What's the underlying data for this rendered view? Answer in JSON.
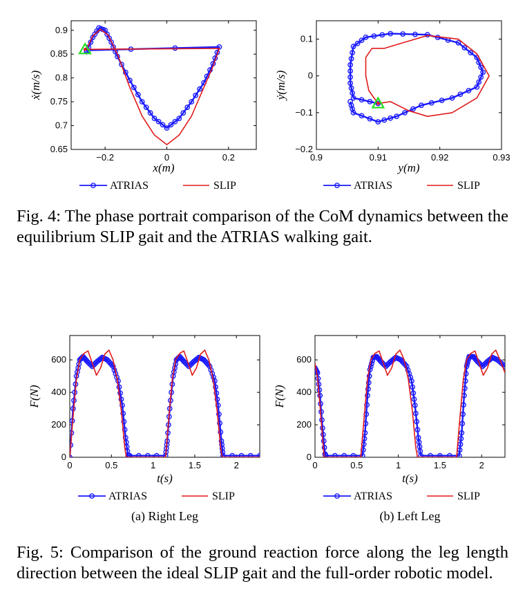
{
  "colors": {
    "atrias": "#1a1aff",
    "slip": "#e11a1a",
    "marker": "#22dd22"
  },
  "captions": {
    "fig4": "Fig. 4: The phase portrait comparison of the CoM dynamics between the equilibrium SLIP gait and the ATRIAS walking gait.",
    "fig5": "Fig. 5: Comparison of the ground reaction force along the leg length direction between the ideal SLIP gait and the full-order robotic model."
  },
  "chart_data": [
    {
      "id": "x-phase",
      "type": "line",
      "xlabel": "x(m)",
      "ylabel": "ẋ(m/s)",
      "xlim": [
        -0.31,
        0.29
      ],
      "ylim": [
        0.65,
        0.92
      ],
      "xticks": [
        -0.2,
        0,
        0.2
      ],
      "yticks": [
        0.65,
        0.7,
        0.75,
        0.8,
        0.85,
        0.9
      ],
      "xtick_labels": [
        "−0.2",
        "0",
        "0.2"
      ],
      "ytick_labels": [
        "0.65",
        "0.7",
        "0.75",
        "0.8",
        "0.85",
        "0.9"
      ],
      "legend": [
        "ATRIAS",
        "SLIP"
      ],
      "legend_position": "bottom",
      "series": [
        {
          "name": "ATRIAS",
          "marker": "circle",
          "points": [
            [
              -0.26,
              0.855
            ],
            [
              -0.24,
              0.885
            ],
            [
              -0.22,
              0.905
            ],
            [
              -0.2,
              0.9
            ],
            [
              -0.18,
              0.875
            ],
            [
              -0.16,
              0.845
            ],
            [
              -0.12,
              0.795
            ],
            [
              -0.08,
              0.75
            ],
            [
              -0.04,
              0.715
            ],
            [
              0,
              0.695
            ],
            [
              0.04,
              0.715
            ],
            [
              0.08,
              0.75
            ],
            [
              0.12,
              0.79
            ],
            [
              0.15,
              0.83
            ],
            [
              0.17,
              0.865
            ],
            [
              -0.26,
              0.858
            ]
          ]
        },
        {
          "name": "SLIP",
          "points": [
            [
              -0.26,
              0.86
            ],
            [
              -0.24,
              0.888
            ],
            [
              -0.215,
              0.902
            ],
            [
              -0.19,
              0.89
            ],
            [
              -0.16,
              0.85
            ],
            [
              -0.12,
              0.78
            ],
            [
              -0.08,
              0.72
            ],
            [
              -0.04,
              0.68
            ],
            [
              0,
              0.66
            ],
            [
              0.04,
              0.68
            ],
            [
              0.08,
              0.72
            ],
            [
              0.12,
              0.78
            ],
            [
              0.15,
              0.825
            ],
            [
              0.17,
              0.862
            ],
            [
              -0.26,
              0.86
            ]
          ]
        }
      ],
      "start_marker": [
        -0.265,
        0.86
      ]
    },
    {
      "id": "y-phase",
      "type": "line",
      "xlabel": "y(m)",
      "ylabel": "ẏ(m/s)",
      "xlim": [
        0.9,
        0.93
      ],
      "ylim": [
        -0.2,
        0.15
      ],
      "xticks": [
        0.9,
        0.91,
        0.92,
        0.93
      ],
      "yticks": [
        -0.2,
        -0.1,
        0,
        0.1
      ],
      "xtick_labels": [
        "0.9",
        "0.91",
        "0.92",
        "0.93"
      ],
      "ytick_labels": [
        "−0.2",
        "−0.1",
        "0",
        "0.1"
      ],
      "legend": [
        "ATRIAS",
        "SLIP"
      ],
      "legend_position": "bottom",
      "series": [
        {
          "name": "ATRIAS",
          "marker": "circle",
          "points": [
            [
              0.91,
              -0.075
            ],
            [
              0.906,
              -0.06
            ],
            [
              0.9055,
              -0.02
            ],
            [
              0.9055,
              0.03
            ],
            [
              0.906,
              0.08
            ],
            [
              0.908,
              0.105
            ],
            [
              0.912,
              0.115
            ],
            [
              0.918,
              0.112
            ],
            [
              0.923,
              0.09
            ],
            [
              0.926,
              0.05
            ],
            [
              0.927,
              0.01
            ],
            [
              0.926,
              -0.03
            ],
            [
              0.922,
              -0.06
            ],
            [
              0.917,
              -0.08
            ],
            [
              0.913,
              -0.11
            ],
            [
              0.91,
              -0.125
            ],
            [
              0.906,
              -0.1
            ],
            [
              0.9055,
              -0.07
            ]
          ]
        },
        {
          "name": "SLIP",
          "points": [
            [
              0.91,
              -0.075
            ],
            [
              0.9085,
              -0.04
            ],
            [
              0.908,
              0.0
            ],
            [
              0.908,
              0.05
            ],
            [
              0.909,
              0.075
            ],
            [
              0.911,
              0.075
            ],
            [
              0.914,
              0.09
            ],
            [
              0.918,
              0.11
            ],
            [
              0.923,
              0.1
            ],
            [
              0.926,
              0.06
            ],
            [
              0.928,
              0.0
            ],
            [
              0.926,
              -0.06
            ],
            [
              0.922,
              -0.1
            ],
            [
              0.918,
              -0.11
            ],
            [
              0.915,
              -0.095
            ],
            [
              0.912,
              -0.07
            ],
            [
              0.91,
              -0.075
            ]
          ]
        }
      ],
      "start_marker": [
        0.91,
        -0.075
      ]
    },
    {
      "id": "right-leg",
      "type": "line",
      "subtitle": "(a) Right Leg",
      "xlabel": "t(s)",
      "ylabel": "F(N)",
      "xlim": [
        0,
        2.28
      ],
      "ylim": [
        0,
        750
      ],
      "xticks": [
        0,
        0.5,
        1,
        1.5,
        2
      ],
      "yticks": [
        0,
        200,
        400,
        600
      ],
      "xtick_labels": [
        "0",
        "0.5",
        "1",
        "1.5",
        "2"
      ],
      "ytick_labels": [
        "0",
        "200",
        "400",
        "600"
      ],
      "legend": [
        "ATRIAS",
        "SLIP"
      ],
      "legend_position": "bottom",
      "series": [
        {
          "name": "ATRIAS",
          "marker": "circle",
          "points": [
            [
              0,
              0
            ],
            [
              0.04,
              300
            ],
            [
              0.08,
              500
            ],
            [
              0.12,
              600
            ],
            [
              0.16,
              620
            ],
            [
              0.21,
              590
            ],
            [
              0.27,
              560
            ],
            [
              0.33,
              590
            ],
            [
              0.39,
              615
            ],
            [
              0.45,
              600
            ],
            [
              0.52,
              560
            ],
            [
              0.58,
              470
            ],
            [
              0.63,
              320
            ],
            [
              0.67,
              120
            ],
            [
              0.7,
              10
            ],
            [
              0.72,
              10
            ],
            [
              1.15,
              10
            ],
            [
              1.17,
              100
            ],
            [
              1.2,
              300
            ],
            [
              1.24,
              500
            ],
            [
              1.28,
              600
            ],
            [
              1.32,
              620
            ],
            [
              1.37,
              590
            ],
            [
              1.43,
              560
            ],
            [
              1.49,
              590
            ],
            [
              1.55,
              615
            ],
            [
              1.61,
              600
            ],
            [
              1.68,
              560
            ],
            [
              1.74,
              470
            ],
            [
              1.78,
              320
            ],
            [
              1.82,
              100
            ],
            [
              1.84,
              10
            ],
            [
              2.28,
              10
            ]
          ]
        },
        {
          "name": "SLIP",
          "points": [
            [
              0,
              0
            ],
            [
              0.04,
              250
            ],
            [
              0.08,
              480
            ],
            [
              0.12,
              600
            ],
            [
              0.17,
              640
            ],
            [
              0.22,
              655
            ],
            [
              0.27,
              580
            ],
            [
              0.32,
              505
            ],
            [
              0.37,
              550
            ],
            [
              0.42,
              635
            ],
            [
              0.47,
              660
            ],
            [
              0.52,
              600
            ],
            [
              0.57,
              480
            ],
            [
              0.62,
              280
            ],
            [
              0.66,
              60
            ],
            [
              0.68,
              0
            ],
            [
              1.15,
              0
            ],
            [
              1.19,
              250
            ],
            [
              1.23,
              480
            ],
            [
              1.27,
              600
            ],
            [
              1.32,
              640
            ],
            [
              1.37,
              655
            ],
            [
              1.42,
              580
            ],
            [
              1.47,
              505
            ],
            [
              1.52,
              550
            ],
            [
              1.57,
              635
            ],
            [
              1.62,
              660
            ],
            [
              1.67,
              600
            ],
            [
              1.72,
              480
            ],
            [
              1.77,
              280
            ],
            [
              1.81,
              60
            ],
            [
              1.83,
              0
            ],
            [
              2.28,
              0
            ]
          ]
        }
      ]
    },
    {
      "id": "left-leg",
      "type": "line",
      "subtitle": "(b) Left Leg",
      "xlabel": "t(s)",
      "ylabel": "F(N)",
      "xlim": [
        0,
        2.28
      ],
      "ylim": [
        0,
        750
      ],
      "xticks": [
        0,
        0.5,
        1,
        1.5,
        2
      ],
      "yticks": [
        0,
        200,
        400,
        600
      ],
      "xtick_labels": [
        "0",
        "0.5",
        "1",
        "1.5",
        "2"
      ],
      "ytick_labels": [
        "0",
        "200",
        "400",
        "600"
      ],
      "legend": [
        "ATRIAS",
        "SLIP"
      ],
      "legend_position": "bottom",
      "series": [
        {
          "name": "ATRIAS",
          "marker": "circle",
          "points": [
            [
              0,
              550
            ],
            [
              0.03,
              520
            ],
            [
              0.06,
              380
            ],
            [
              0.09,
              180
            ],
            [
              0.12,
              20
            ],
            [
              0.13,
              10
            ],
            [
              0.57,
              10
            ],
            [
              0.6,
              150
            ],
            [
              0.63,
              380
            ],
            [
              0.66,
              540
            ],
            [
              0.7,
              615
            ],
            [
              0.74,
              620
            ],
            [
              0.79,
              590
            ],
            [
              0.85,
              560
            ],
            [
              0.91,
              590
            ],
            [
              0.97,
              615
            ],
            [
              1.03,
              600
            ],
            [
              1.1,
              560
            ],
            [
              1.16,
              470
            ],
            [
              1.2,
              320
            ],
            [
              1.24,
              120
            ],
            [
              1.27,
              10
            ],
            [
              1.73,
              10
            ],
            [
              1.76,
              150
            ],
            [
              1.79,
              380
            ],
            [
              1.82,
              560
            ],
            [
              1.85,
              620
            ],
            [
              1.9,
              620
            ],
            [
              1.95,
              590
            ],
            [
              2.01,
              560
            ],
            [
              2.07,
              590
            ],
            [
              2.13,
              615
            ],
            [
              2.19,
              600
            ],
            [
              2.28,
              560
            ]
          ]
        },
        {
          "name": "SLIP",
          "points": [
            [
              0,
              580
            ],
            [
              0.03,
              490
            ],
            [
              0.06,
              320
            ],
            [
              0.09,
              120
            ],
            [
              0.11,
              0
            ],
            [
              0.55,
              0
            ],
            [
              0.59,
              250
            ],
            [
              0.63,
              480
            ],
            [
              0.67,
              600
            ],
            [
              0.72,
              640
            ],
            [
              0.77,
              655
            ],
            [
              0.82,
              580
            ],
            [
              0.87,
              505
            ],
            [
              0.92,
              550
            ],
            [
              0.97,
              635
            ],
            [
              1.02,
              660
            ],
            [
              1.07,
              600
            ],
            [
              1.12,
              480
            ],
            [
              1.17,
              280
            ],
            [
              1.21,
              60
            ],
            [
              1.23,
              0
            ],
            [
              1.7,
              0
            ],
            [
              1.74,
              250
            ],
            [
              1.78,
              480
            ],
            [
              1.82,
              600
            ],
            [
              1.87,
              640
            ],
            [
              1.92,
              655
            ],
            [
              1.97,
              580
            ],
            [
              2.02,
              505
            ],
            [
              2.07,
              550
            ],
            [
              2.12,
              635
            ],
            [
              2.17,
              660
            ],
            [
              2.22,
              600
            ],
            [
              2.28,
              520
            ]
          ]
        }
      ]
    }
  ]
}
